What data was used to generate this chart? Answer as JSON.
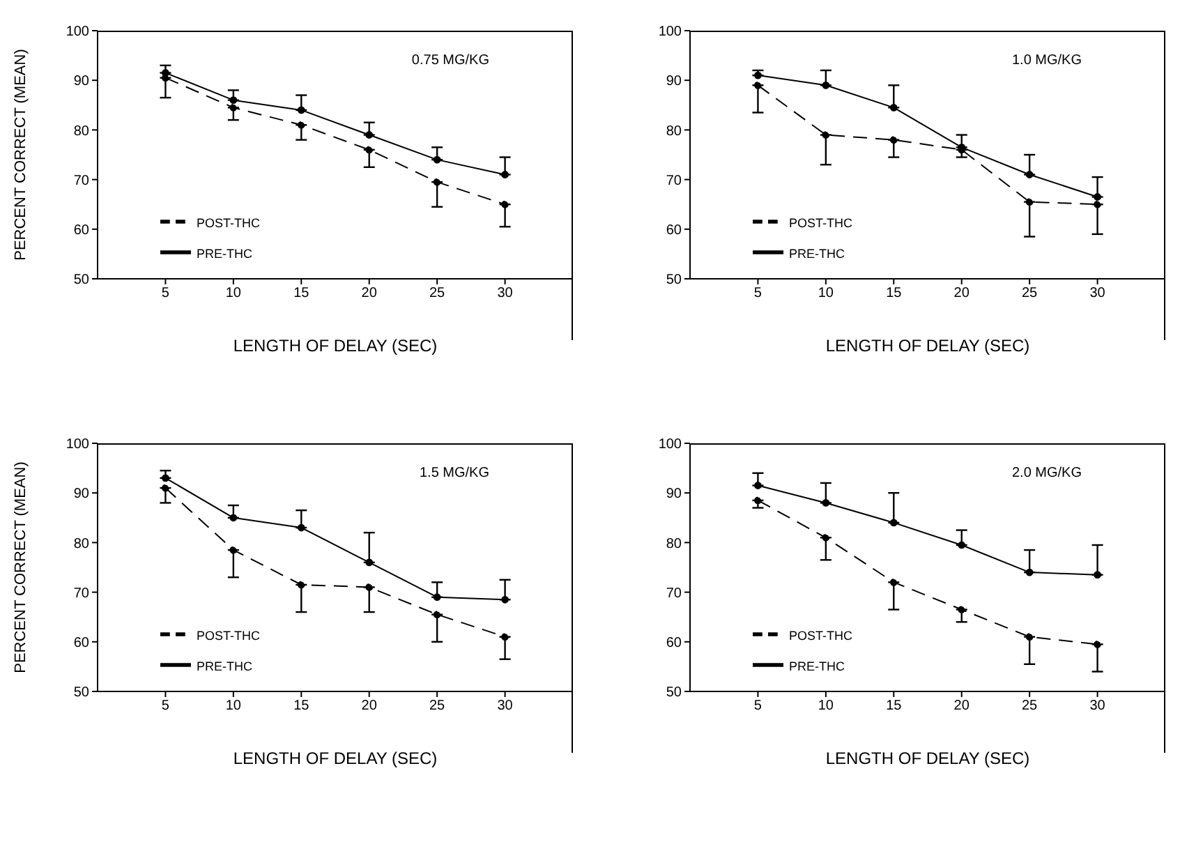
{
  "chart_data": [
    {
      "type": "line",
      "title": "0.75 MG/KG",
      "xlabel": "LENGTH OF DELAY (SEC)",
      "ylabel": "PERCENT CORRECT (MEAN)",
      "x": [
        5,
        10,
        15,
        20,
        25,
        30
      ],
      "xlim": [
        0,
        35
      ],
      "xticks": [
        5,
        10,
        15,
        20,
        25,
        30
      ],
      "ylim": [
        50,
        100
      ],
      "yticks": [
        50,
        60,
        70,
        80,
        90,
        100
      ],
      "legend": "left",
      "marker": "circle",
      "series": [
        {
          "name": "PRE-THC",
          "color": "#000000",
          "line_style": "solid",
          "values": [
            91.5,
            86,
            84,
            79,
            74,
            71
          ],
          "errors": [
            [
              91.5,
              93
            ],
            [
              86,
              88
            ],
            [
              84,
              87
            ],
            [
              79,
              81.5
            ],
            [
              74,
              76.5
            ],
            [
              71,
              74.5
            ]
          ]
        },
        {
          "name": "POST-THC",
          "color": "#000000",
          "line_style": "dashed",
          "values": [
            90.5,
            84.5,
            81,
            76,
            69.5,
            65
          ],
          "errors": [
            [
              86.5,
              90.5
            ],
            [
              82,
              84.5
            ],
            [
              78,
              81
            ],
            [
              72.5,
              76
            ],
            [
              64.5,
              69.5
            ],
            [
              60.5,
              65
            ]
          ]
        }
      ]
    },
    {
      "type": "line",
      "title": "1.0 MG/KG",
      "xlabel": "LENGTH OF DELAY (SEC)",
      "x": [
        5,
        10,
        15,
        20,
        25,
        30
      ],
      "xlim": [
        0,
        35
      ],
      "xticks": [
        5,
        10,
        15,
        20,
        25,
        30
      ],
      "ylim": [
        50,
        100
      ],
      "yticks": [
        50,
        60,
        70,
        80,
        90,
        100
      ],
      "legend": "left",
      "marker": "circle",
      "series": [
        {
          "name": "PRE-THC",
          "color": "#000000",
          "line_style": "solid",
          "values": [
            91,
            89,
            84.5,
            76.5,
            71,
            66.5
          ],
          "errors": [
            [
              91,
              92
            ],
            [
              89,
              92
            ],
            [
              84.5,
              89
            ],
            [
              76.5,
              79
            ],
            [
              71,
              75
            ],
            [
              66.5,
              70.5
            ]
          ]
        },
        {
          "name": "POST-THC",
          "color": "#000000",
          "line_style": "dashed",
          "values": [
            89,
            79,
            78,
            76,
            65.5,
            65
          ],
          "errors": [
            [
              83.5,
              89
            ],
            [
              73,
              79
            ],
            [
              74.5,
              78
            ],
            [
              74.5,
              76
            ],
            [
              58.5,
              65.5
            ],
            [
              59,
              65
            ]
          ]
        }
      ]
    },
    {
      "type": "line",
      "title": "1.5 MG/KG",
      "xlabel": "LENGTH OF DELAY (SEC)",
      "ylabel": "PERCENT CORRECT (MEAN)",
      "x": [
        5,
        10,
        15,
        20,
        25,
        30
      ],
      "xlim": [
        0,
        35
      ],
      "xticks": [
        5,
        10,
        15,
        20,
        25,
        30
      ],
      "ylim": [
        50,
        100
      ],
      "yticks": [
        50,
        60,
        70,
        80,
        90,
        100
      ],
      "legend": "left",
      "marker": "circle",
      "series": [
        {
          "name": "PRE-THC",
          "color": "#000000",
          "line_style": "solid",
          "values": [
            93,
            85,
            83,
            76,
            69,
            68.5
          ],
          "errors": [
            [
              93,
              94.5
            ],
            [
              85,
              87.5
            ],
            [
              83,
              86.5
            ],
            [
              76,
              82
            ],
            [
              69,
              72
            ],
            [
              68.5,
              72.5
            ]
          ]
        },
        {
          "name": "POST-THC",
          "color": "#000000",
          "line_style": "dashed",
          "values": [
            91,
            78.5,
            71.5,
            71,
            65.5,
            61
          ],
          "errors": [
            [
              88,
              91
            ],
            [
              73,
              78.5
            ],
            [
              66,
              71.5
            ],
            [
              66,
              71
            ],
            [
              60,
              65.5
            ],
            [
              56.5,
              61
            ]
          ]
        }
      ]
    },
    {
      "type": "line",
      "title": "2.0 MG/KG",
      "xlabel": "LENGTH OF DELAY (SEC)",
      "x": [
        5,
        10,
        15,
        20,
        25,
        30
      ],
      "xlim": [
        0,
        35
      ],
      "xticks": [
        5,
        10,
        15,
        20,
        25,
        30
      ],
      "ylim": [
        50,
        100
      ],
      "yticks": [
        50,
        60,
        70,
        80,
        90,
        100
      ],
      "legend": "left",
      "marker": "circle",
      "series": [
        {
          "name": "PRE-THC",
          "color": "#000000",
          "line_style": "solid",
          "values": [
            91.5,
            88,
            84,
            79.5,
            74,
            73.5
          ],
          "errors": [
            [
              91.5,
              94
            ],
            [
              88,
              92
            ],
            [
              84,
              90
            ],
            [
              79.5,
              82.5
            ],
            [
              74,
              78.5
            ],
            [
              73.5,
              79.5
            ]
          ]
        },
        {
          "name": "POST-THC",
          "color": "#000000",
          "line_style": "dashed",
          "values": [
            88.5,
            81,
            72,
            66.5,
            61,
            59.5
          ],
          "errors": [
            [
              87,
              88.5
            ],
            [
              76.5,
              81
            ],
            [
              66.5,
              72
            ],
            [
              64,
              66.5
            ],
            [
              55.5,
              61
            ],
            [
              54,
              59.5
            ]
          ]
        }
      ]
    }
  ]
}
